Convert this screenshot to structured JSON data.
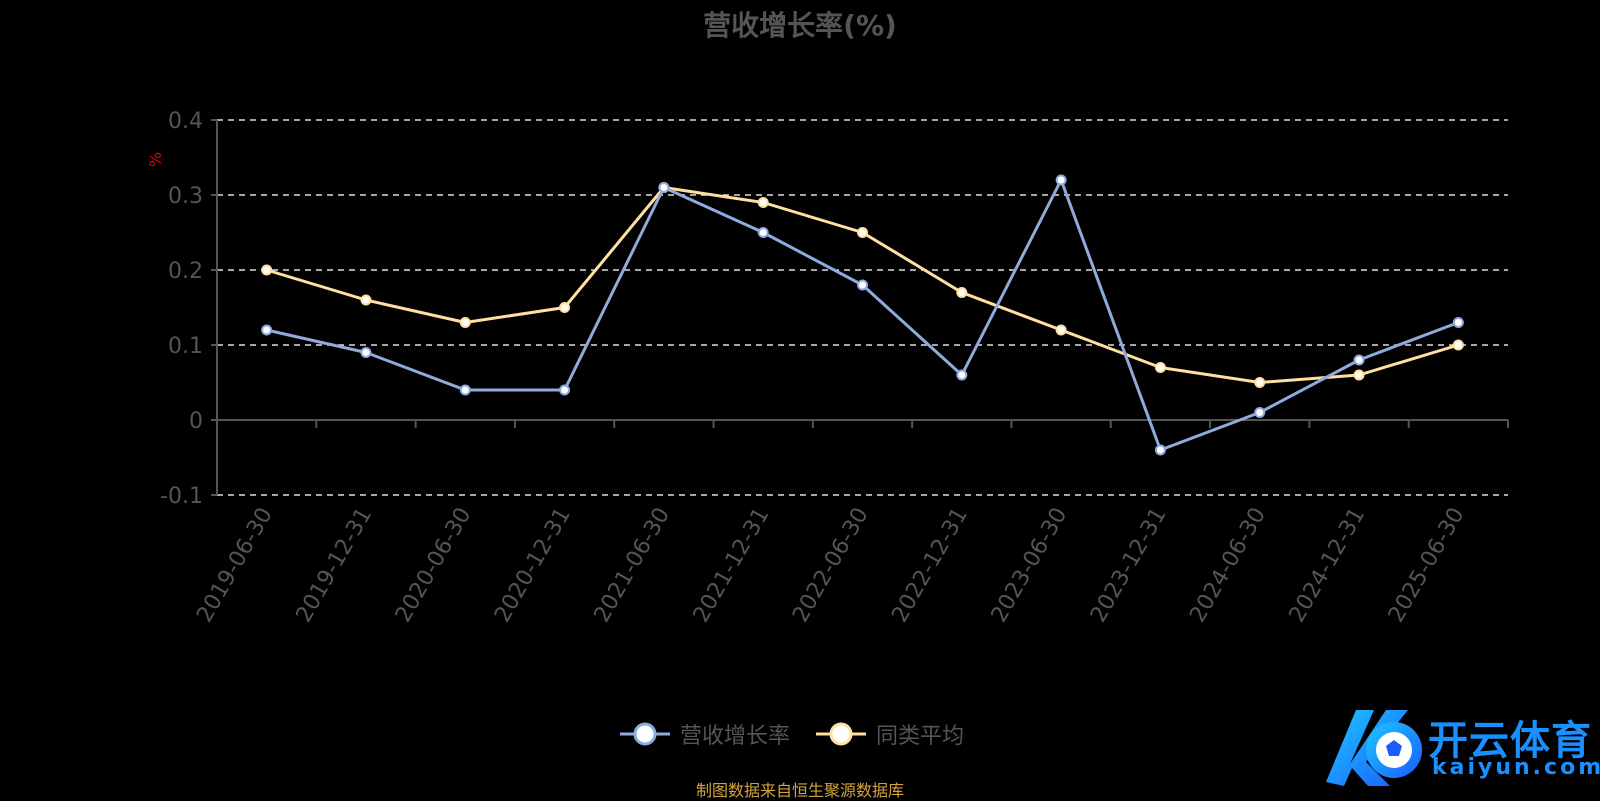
{
  "chart_data": {
    "type": "line",
    "title": "营收增长率(%)",
    "ylabel": "%",
    "categories": [
      "2019-06-30",
      "2019-12-31",
      "2020-06-30",
      "2020-12-31",
      "2021-06-30",
      "2021-12-31",
      "2022-06-30",
      "2022-12-31",
      "2023-06-30",
      "2023-12-31",
      "2024-06-30",
      "2024-12-31",
      "2025-06-30"
    ],
    "series": [
      {
        "name": "营收增长率",
        "color": "#8faadc",
        "values": [
          0.12,
          0.09,
          0.04,
          0.04,
          0.31,
          0.25,
          0.18,
          0.06,
          0.32,
          -0.04,
          0.01,
          0.08,
          0.13
        ]
      },
      {
        "name": "同类平均",
        "color": "#ffe0a0",
        "values": [
          0.2,
          0.16,
          0.13,
          0.15,
          0.31,
          0.29,
          0.25,
          0.17,
          0.12,
          0.07,
          0.05,
          0.06,
          0.1
        ]
      }
    ],
    "ylim": [
      -0.1,
      0.4
    ],
    "yticks": [
      "0.4",
      "0.3",
      "0.2",
      "0.1",
      "0",
      "-0.1"
    ],
    "grid": true,
    "legend": "bottom"
  },
  "source": "制图数据来自恒生聚源数据库",
  "watermark": {
    "title": "开云体育",
    "subtitle": "kaiyun.com"
  }
}
